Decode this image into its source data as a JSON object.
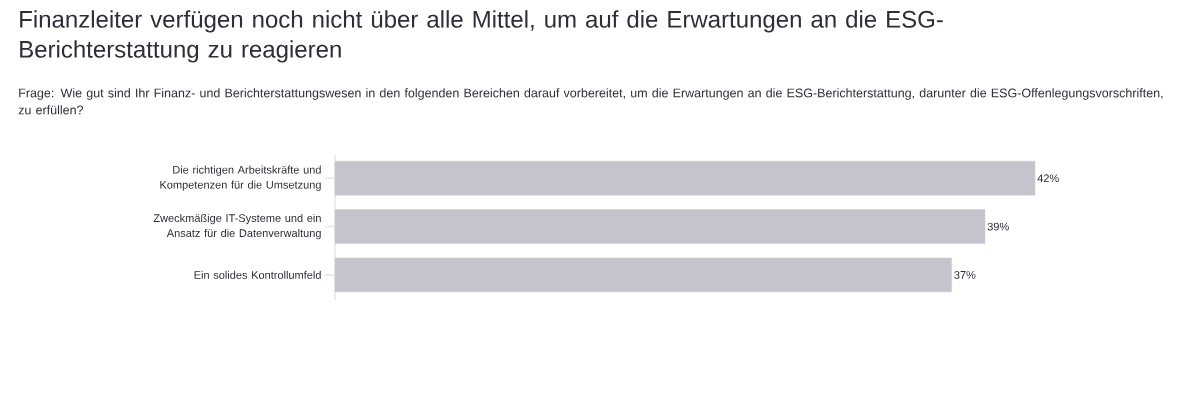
{
  "chart_data": {
    "type": "bar",
    "orientation": "horizontal",
    "title": "Finanzleiter verfügen noch nicht über alle Mittel, um auf die Erwartungen an die ESG-Berichterstattung zu reagieren",
    "subtitle": "Frage: Wie gut sind Ihr Finanz- und Berichterstattungswesen in den folgenden Bereichen darauf vorbereitet, um die Erwartungen an die ESG-Berichterstattung, darunter die ESG-Offenlegungsvorschriften, zu erfüllen?",
    "categories": [
      "Die richtigen Arbeitskräfte und Kompetenzen für die Umsetzung",
      "Zweckmäßige IT-Systeme und ein Ansatz für die Datenverwaltung",
      "Ein solides Kontrollumfeld"
    ],
    "values": [
      42,
      39,
      37
    ],
    "value_labels": [
      "42%",
      "39%",
      "37%"
    ],
    "color": "#c4c4cc"
  }
}
